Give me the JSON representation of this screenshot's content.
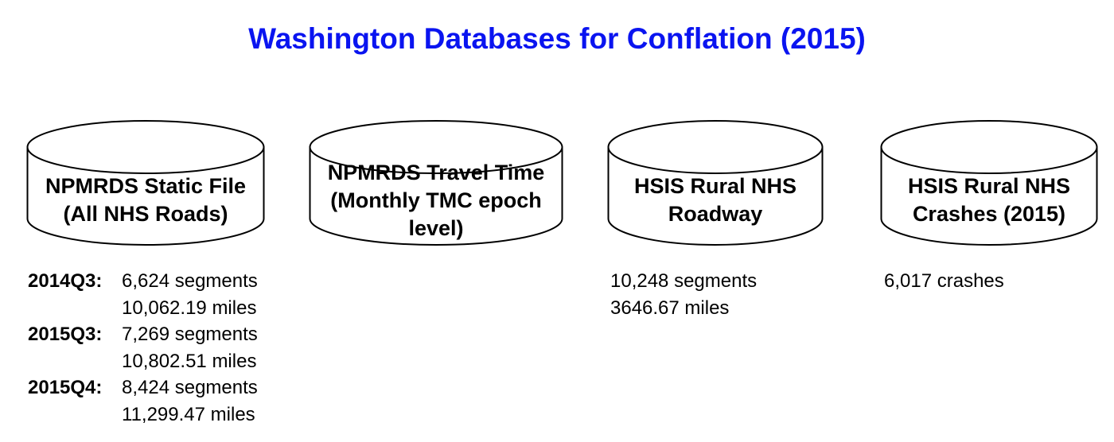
{
  "title": "Washington Databases for Conflation (2015)",
  "databases": [
    {
      "lines": [
        "NPMRDS Static File",
        "(All NHS Roads)"
      ],
      "stats": [
        {
          "period": "2014Q3:",
          "values": [
            "6,624 segments",
            "10,062.19 miles"
          ]
        },
        {
          "period": "2015Q3:",
          "values": [
            "7,269 segments",
            "10,802.51 miles"
          ]
        },
        {
          "period": "2015Q4:",
          "values": [
            "8,424 segments",
            "11,299.47 miles"
          ]
        }
      ]
    },
    {
      "lines": [
        "NPMRDS Travel Time",
        "(Monthly TMC epoch",
        "level)"
      ],
      "stats": []
    },
    {
      "lines": [
        "HSIS Rural NHS",
        "Roadway"
      ],
      "stats": [
        "10,248 segments",
        "3646.67 miles"
      ]
    },
    {
      "lines": [
        "HSIS Rural NHS",
        "Crashes (2015)"
      ],
      "stats": [
        "6,017 crashes"
      ]
    }
  ]
}
